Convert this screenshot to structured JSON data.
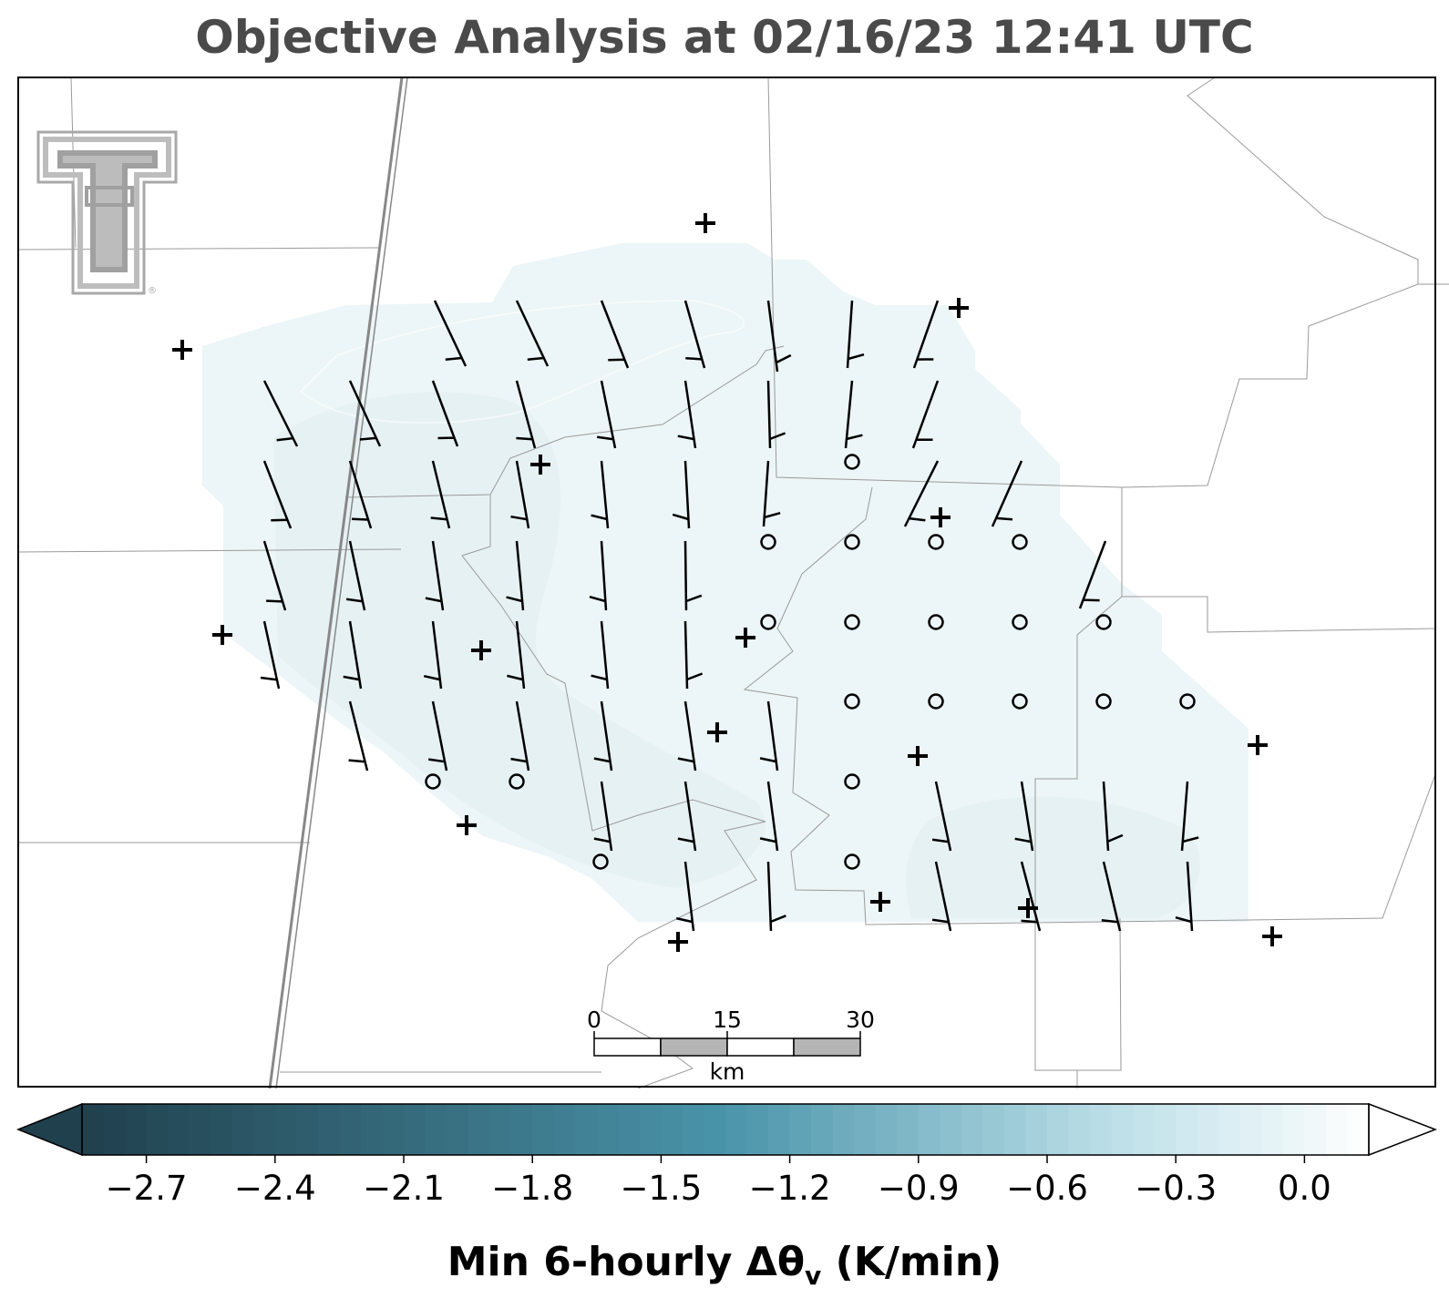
{
  "title": "Objective Analysis at 02/16/23 12:41 UTC",
  "colorbar": {
    "label_main": "Min 6-hourly Δθ",
    "label_sub": "v",
    "label_units": "(K/min)",
    "tick_labels": [
      "−2.7",
      "−2.4",
      "−2.1",
      "−1.8",
      "−1.5",
      "−1.2",
      "−0.9",
      "−0.6",
      "−0.3",
      "0.0"
    ],
    "tick_values": [
      -2.7,
      -2.4,
      -2.1,
      -1.8,
      -1.5,
      -1.2,
      -0.9,
      -0.6,
      -0.3,
      0.0
    ],
    "vmin": -2.85,
    "vmax": 0.15,
    "extend": "both",
    "colors": {
      "low": "#20404d",
      "mid": "#4a94aa",
      "light": "#bcdfe8",
      "high": "#ffffff"
    }
  },
  "scale_bar": {
    "labels": [
      "0",
      "15",
      "30"
    ],
    "unit": "km"
  },
  "logo": {
    "icon": "texas-tech-double-t-logo",
    "mark": "®"
  },
  "analysis_field": {
    "fill_color": "#e9f3f6",
    "value": 0.0
  },
  "symbols": {
    "calm": "circle",
    "station": "plus",
    "wind": "wind-barb"
  }
}
